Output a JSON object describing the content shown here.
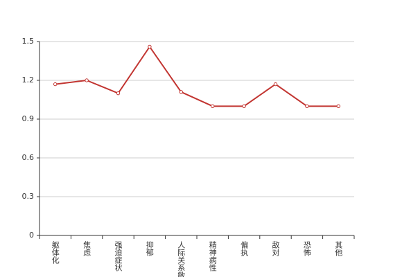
{
  "chart_data": {
    "type": "line",
    "categories": [
      "躯体化",
      "焦虑",
      "强迫症状",
      "抑郁",
      "人际关系敏感",
      "精神病性",
      "偏执",
      "敌对",
      "恐怖",
      "其他"
    ],
    "values": [
      1.17,
      1.2,
      1.1,
      1.46,
      1.11,
      1.0,
      1.0,
      1.17,
      1.0,
      1.0
    ],
    "color": "#c23531",
    "ylim": [
      0,
      1.5
    ],
    "yticks": [
      0,
      0.3,
      0.6,
      0.9,
      1.2,
      1.5
    ],
    "grid": true
  }
}
